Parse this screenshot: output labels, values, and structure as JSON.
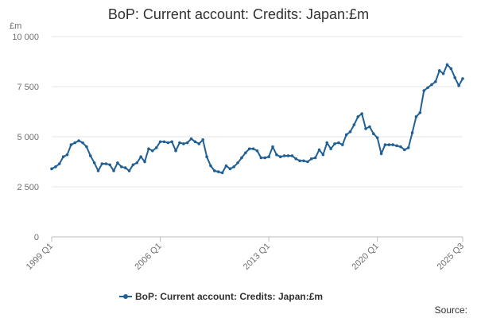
{
  "title": "BoP: Current account: Credits: Japan:£m",
  "source_label": "Source:",
  "chart_data": {
    "type": "line",
    "title": "BoP: Current account: Credits: Japan:£m",
    "ylabel": "£m",
    "xlabel": "",
    "ylim": [
      0,
      10000
    ],
    "yticks": [
      0,
      2500,
      5000,
      7500,
      10000
    ],
    "ytick_labels": [
      "0",
      "2 500",
      "5 000",
      "7 500",
      "10 000"
    ],
    "xtick_labels": [
      "1999 Q1",
      "2006 Q1",
      "2013 Q1",
      "2020 Q1",
      "2025 Q3"
    ],
    "grid": true,
    "legend_position": "bottom",
    "series": [
      {
        "name": "BoP: Current account: Credits: Japan:£m",
        "color": "#206095",
        "marker_color": "#27a0cc",
        "x": [
          "1999 Q1",
          "1999 Q2",
          "1999 Q3",
          "1999 Q4",
          "2000 Q1",
          "2000 Q2",
          "2000 Q3",
          "2000 Q4",
          "2001 Q1",
          "2001 Q2",
          "2001 Q3",
          "2001 Q4",
          "2002 Q1",
          "2002 Q2",
          "2002 Q3",
          "2002 Q4",
          "2003 Q1",
          "2003 Q2",
          "2003 Q3",
          "2003 Q4",
          "2004 Q1",
          "2004 Q2",
          "2004 Q3",
          "2004 Q4",
          "2005 Q1",
          "2005 Q2",
          "2005 Q3",
          "2005 Q4",
          "2006 Q1",
          "2006 Q2",
          "2006 Q3",
          "2006 Q4",
          "2007 Q1",
          "2007 Q2",
          "2007 Q3",
          "2007 Q4",
          "2008 Q1",
          "2008 Q2",
          "2008 Q3",
          "2008 Q4",
          "2009 Q1",
          "2009 Q2",
          "2009 Q3",
          "2009 Q4",
          "2010 Q1",
          "2010 Q2",
          "2010 Q3",
          "2010 Q4",
          "2011 Q1",
          "2011 Q2",
          "2011 Q3",
          "2011 Q4",
          "2012 Q1",
          "2012 Q2",
          "2012 Q3",
          "2012 Q4",
          "2013 Q1",
          "2013 Q2",
          "2013 Q3",
          "2013 Q4",
          "2014 Q1",
          "2014 Q2",
          "2014 Q3",
          "2014 Q4",
          "2015 Q1",
          "2015 Q2",
          "2015 Q3",
          "2015 Q4",
          "2016 Q1",
          "2016 Q2",
          "2016 Q3",
          "2016 Q4",
          "2017 Q1",
          "2017 Q2",
          "2017 Q3",
          "2017 Q4",
          "2018 Q1",
          "2018 Q2",
          "2018 Q3",
          "2018 Q4",
          "2019 Q1",
          "2019 Q2",
          "2019 Q3",
          "2019 Q4",
          "2020 Q1",
          "2020 Q2",
          "2020 Q3",
          "2020 Q4",
          "2021 Q1",
          "2021 Q2",
          "2021 Q3",
          "2021 Q4",
          "2022 Q1",
          "2022 Q2",
          "2022 Q3",
          "2022 Q4",
          "2023 Q1",
          "2023 Q2",
          "2023 Q3",
          "2023 Q4",
          "2024 Q1",
          "2024 Q2",
          "2024 Q3",
          "2024 Q4",
          "2025 Q1",
          "2025 Q2",
          "2025 Q3"
        ],
        "values": [
          3400,
          3500,
          3650,
          4000,
          4100,
          4600,
          4700,
          4800,
          4700,
          4500,
          4050,
          3700,
          3300,
          3650,
          3650,
          3600,
          3300,
          3700,
          3500,
          3450,
          3300,
          3600,
          3700,
          4000,
          3750,
          4400,
          4300,
          4450,
          4750,
          4750,
          4700,
          4750,
          4300,
          4700,
          4650,
          4700,
          4900,
          4750,
          4650,
          4850,
          4000,
          3550,
          3300,
          3250,
          3200,
          3550,
          3400,
          3500,
          3700,
          3950,
          4200,
          4400,
          4400,
          4300,
          3950,
          3950,
          4000,
          4500,
          4100,
          4000,
          4050,
          4050,
          4050,
          3900,
          3800,
          3800,
          3750,
          3900,
          3950,
          4350,
          4100,
          4700,
          4400,
          4650,
          4700,
          4600,
          5100,
          5250,
          5600,
          6000,
          6150,
          5400,
          5500,
          5150,
          4950,
          4150,
          4600,
          4600,
          4600,
          4550,
          4500,
          4350,
          4450,
          5200,
          6000,
          6200,
          7300,
          7450,
          7600,
          7750,
          8300,
          8150,
          8600,
          8400,
          7950,
          7550,
          7900
        ]
      }
    ]
  }
}
